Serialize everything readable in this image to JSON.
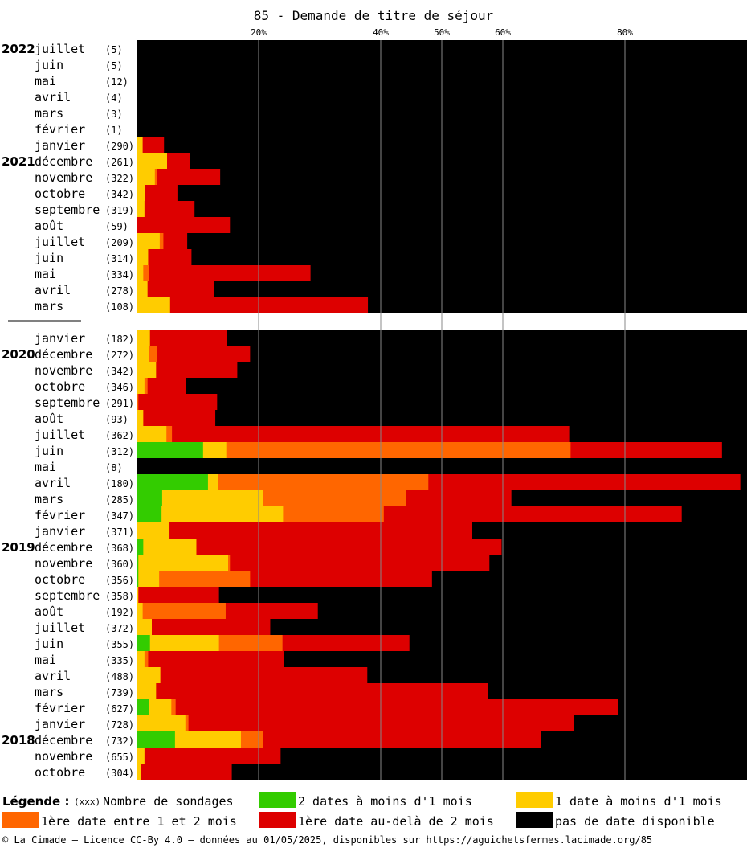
{
  "chart_data": {
    "type": "bar",
    "orientation": "horizontal",
    "stacked": true,
    "title": "85 - Demande de titre de séjour",
    "x_ticks": [
      "20%",
      "40%",
      "50%",
      "60%",
      "80%"
    ],
    "x_tick_values": [
      20,
      40,
      50,
      60,
      80
    ],
    "xlim": [
      0,
      100
    ],
    "grid": "vertical",
    "series_names": [
      "2 dates à moins d'1 mois",
      "1 date à moins d'1 mois",
      "1ère date entre 1 et 2 mois",
      "1ère date au-delà de 2 mois",
      "pas de date disponible"
    ],
    "rows": [
      {
        "year": "2022",
        "month": "juillet",
        "count": "(5)",
        "values": [
          0,
          0,
          0,
          0,
          100
        ]
      },
      {
        "year": "",
        "month": "juin",
        "count": "(5)",
        "values": [
          0,
          0,
          0,
          0,
          100
        ]
      },
      {
        "year": "",
        "month": "mai",
        "count": "(12)",
        "values": [
          0,
          0,
          0,
          0,
          100
        ]
      },
      {
        "year": "",
        "month": "avril",
        "count": "(4)",
        "values": [
          0,
          0,
          0,
          0,
          100
        ]
      },
      {
        "year": "",
        "month": "mars",
        "count": "(3)",
        "values": [
          0,
          0,
          0,
          0,
          100
        ]
      },
      {
        "year": "",
        "month": "février",
        "count": "(1)",
        "values": [
          0,
          0,
          0,
          0,
          100
        ]
      },
      {
        "year": "",
        "month": "janvier",
        "count": "(290)",
        "values": [
          0,
          1,
          0,
          3.5,
          95.5
        ]
      },
      {
        "year": "2021",
        "month": "décembre",
        "count": "(261)",
        "values": [
          0,
          5,
          0,
          3.8,
          91.2
        ]
      },
      {
        "year": "",
        "month": "novembre",
        "count": "(322)",
        "values": [
          0,
          3,
          0.3,
          10.4,
          86.3
        ]
      },
      {
        "year": "",
        "month": "octobre",
        "count": "(342)",
        "values": [
          0,
          1.4,
          0,
          5.3,
          93.3
        ]
      },
      {
        "year": "",
        "month": "septembre",
        "count": "(319)",
        "values": [
          0,
          1.3,
          0,
          8.2,
          90.5
        ]
      },
      {
        "year": "",
        "month": "août",
        "count": "(59)",
        "values": [
          0,
          0,
          0,
          15.3,
          84.7
        ]
      },
      {
        "year": "",
        "month": "juillet",
        "count": "(209)",
        "values": [
          0,
          3.8,
          0.6,
          3.9,
          91.7
        ]
      },
      {
        "year": "",
        "month": "juin",
        "count": "(314)",
        "values": [
          0,
          1.9,
          0,
          7.1,
          91
        ]
      },
      {
        "year": "",
        "month": "mai",
        "count": "(334)",
        "values": [
          0,
          1.1,
          0.9,
          26.5,
          71.5
        ]
      },
      {
        "year": "",
        "month": "avril",
        "count": "(278)",
        "values": [
          0,
          1.8,
          0,
          10.9,
          87.3
        ]
      },
      {
        "year": "",
        "month": "mars",
        "count": "(108)",
        "values": [
          0,
          5.5,
          0,
          32.4,
          62.1
        ]
      },
      {
        "gap": true
      },
      {
        "year": "",
        "month": "janvier",
        "count": "(182)",
        "values": [
          0,
          2.2,
          0,
          12.6,
          85.2
        ]
      },
      {
        "year": "2020",
        "month": "décembre",
        "count": "(272)",
        "values": [
          0,
          2.1,
          1.2,
          15.3,
          81.4
        ]
      },
      {
        "year": "",
        "month": "novembre",
        "count": "(342)",
        "values": [
          0,
          3.2,
          0,
          13.3,
          83.5
        ]
      },
      {
        "year": "",
        "month": "octobre",
        "count": "(346)",
        "values": [
          0,
          1.3,
          0.5,
          6.3,
          91.9
        ]
      },
      {
        "year": "",
        "month": "septembre",
        "count": "(291)",
        "values": [
          0,
          0,
          0.3,
          12.9,
          86.8
        ]
      },
      {
        "year": "",
        "month": "août",
        "count": "(93)",
        "values": [
          0,
          1.1,
          0,
          11.8,
          87.1
        ]
      },
      {
        "year": "",
        "month": "juillet",
        "count": "(362)",
        "values": [
          0,
          4.9,
          0.9,
          65.2,
          29
        ]
      },
      {
        "year": "",
        "month": "juin",
        "count": "(312)",
        "values": [
          10.9,
          3.8,
          56.4,
          24.8,
          4.1
        ]
      },
      {
        "year": "",
        "month": "mai",
        "count": "(8)",
        "values": [
          0,
          0,
          0,
          0,
          100
        ]
      },
      {
        "year": "",
        "month": "avril",
        "count": "(180)",
        "values": [
          11.7,
          1.7,
          34.4,
          51.1,
          1.1
        ]
      },
      {
        "year": "",
        "month": "mars",
        "count": "(285)",
        "values": [
          4.2,
          16.5,
          23.5,
          17.2,
          38.6
        ]
      },
      {
        "year": "",
        "month": "février",
        "count": "(347)",
        "values": [
          4.1,
          19.9,
          16.5,
          48.8,
          10.7
        ]
      },
      {
        "year": "",
        "month": "janvier",
        "count": "(371)",
        "values": [
          0,
          5.4,
          0,
          49.6,
          45
        ]
      },
      {
        "year": "2019",
        "month": "décembre",
        "count": "(368)",
        "values": [
          1.1,
          8.7,
          0,
          50,
          40.2
        ]
      },
      {
        "year": "",
        "month": "novembre",
        "count": "(360)",
        "values": [
          0.3,
          14.7,
          0.3,
          42.5,
          42.2
        ]
      },
      {
        "year": "",
        "month": "octobre",
        "count": "(356)",
        "values": [
          0.3,
          3.4,
          14.9,
          29.8,
          51.6
        ]
      },
      {
        "year": "",
        "month": "septembre",
        "count": "(358)",
        "values": [
          0,
          0.3,
          0,
          13.2,
          86.5
        ]
      },
      {
        "year": "",
        "month": "août",
        "count": "(192)",
        "values": [
          0,
          1,
          13.6,
          15.1,
          70.3
        ]
      },
      {
        "year": "",
        "month": "juillet",
        "count": "(372)",
        "values": [
          0,
          2.5,
          0,
          19.4,
          78.1
        ]
      },
      {
        "year": "",
        "month": "juin",
        "count": "(355)",
        "values": [
          2.2,
          11.3,
          10.4,
          20.8,
          55.3
        ]
      },
      {
        "year": "",
        "month": "mai",
        "count": "(335)",
        "values": [
          0,
          1.3,
          0.6,
          22.3,
          75.8
        ]
      },
      {
        "year": "",
        "month": "avril",
        "count": "(488)",
        "values": [
          0,
          3.9,
          0,
          33.9,
          62.2
        ]
      },
      {
        "year": "",
        "month": "mars",
        "count": "(739)",
        "values": [
          0,
          3.2,
          0,
          54.4,
          42.4
        ]
      },
      {
        "year": "",
        "month": "février",
        "count": "(627)",
        "values": [
          2,
          3.7,
          0.7,
          72.5,
          21.1
        ]
      },
      {
        "year": "",
        "month": "janvier",
        "count": "(728)",
        "values": [
          0,
          8,
          0.5,
          63.2,
          28.3
        ]
      },
      {
        "year": "2018",
        "month": "décembre",
        "count": "(732)",
        "values": [
          6.3,
          10.8,
          3.6,
          45.5,
          33.8
        ]
      },
      {
        "year": "",
        "month": "novembre",
        "count": "(655)",
        "values": [
          0,
          1.3,
          0,
          22.3,
          76.4
        ]
      },
      {
        "year": "",
        "month": "octobre",
        "count": "(304)",
        "values": [
          0,
          0.7,
          0,
          14.9,
          84.4
        ]
      }
    ]
  },
  "colors": {
    "green": "#33cc00",
    "yellow": "#ffcc00",
    "orange": "#ff6600",
    "red": "#dd0000",
    "black": "#000000",
    "grid": "#888888"
  },
  "legend": {
    "heading": "Légende :",
    "count_marker": "(xxx)",
    "count_label": "Nombre de sondages",
    "green": "2 dates à moins d'1 mois",
    "yellow": "1 date à moins d'1 mois",
    "orange": "1ère date entre 1 et 2 mois",
    "red": "1ère date au-delà de 2 mois",
    "black": "pas de date disponible"
  },
  "footer": "© La Cimade — Licence CC-By 4.0 — données au 01/05/2025, disponibles sur https://aguichetsfermes.lacimade.org/85"
}
